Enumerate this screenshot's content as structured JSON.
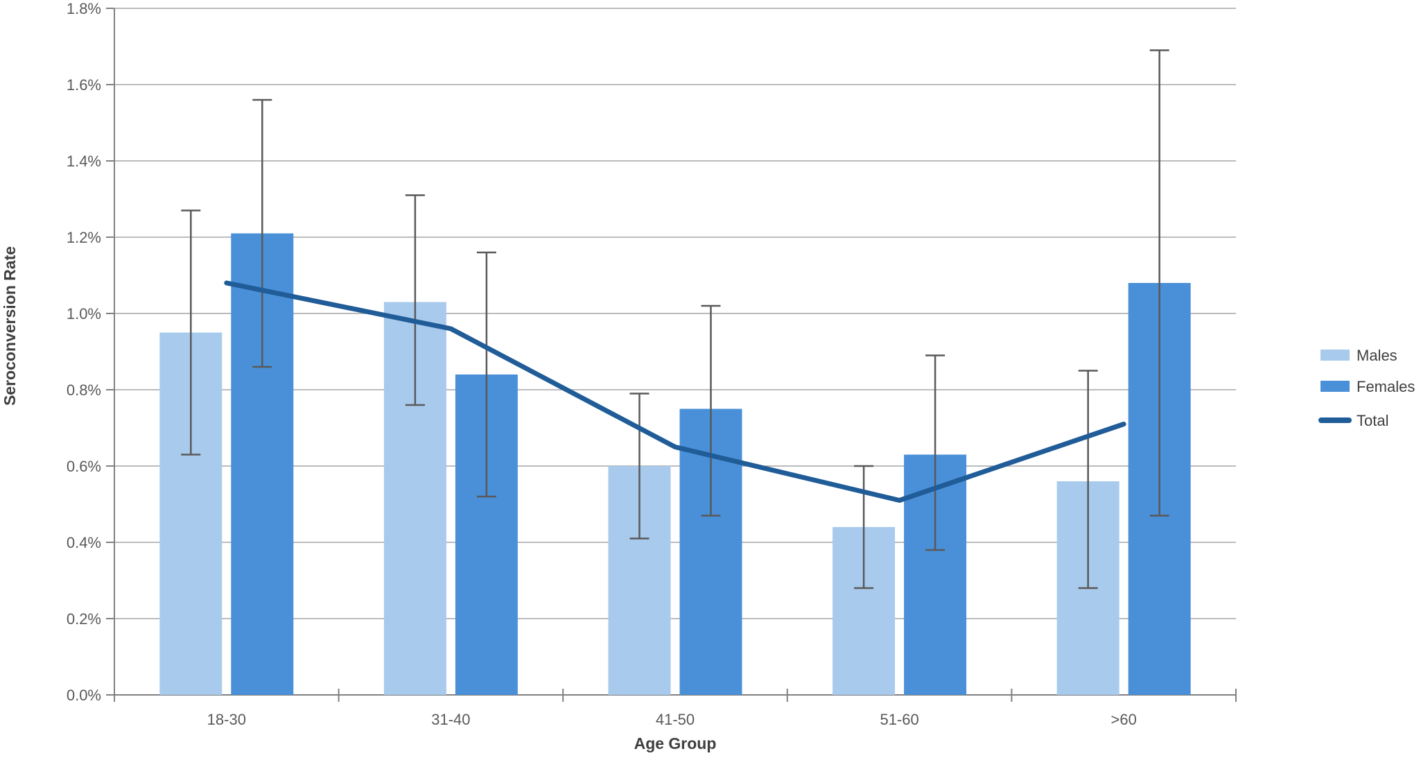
{
  "chart_data": {
    "type": "bar",
    "subtype": "grouped-bars-with-error-bars-and-line-overlay",
    "title": "",
    "xlabel": "Age Group",
    "ylabel": "Seroconversion Rate",
    "categories": [
      "18-30",
      "31-40",
      "41-50",
      "51-60",
      ">60"
    ],
    "value_unit": "percent",
    "ylim": [
      0.0,
      1.8
    ],
    "ytick_step": 0.2,
    "ytick_labels": [
      "0.0%",
      "0.2%",
      "0.4%",
      "0.6%",
      "0.8%",
      "1.0%",
      "1.2%",
      "1.4%",
      "1.6%",
      "1.8%"
    ],
    "grid": true,
    "legend_position": "right",
    "series": [
      {
        "name": "Males",
        "kind": "bar",
        "color": "#A8CAEC",
        "values": [
          0.95,
          1.03,
          0.6,
          0.44,
          0.56
        ],
        "error_low": [
          0.63,
          0.76,
          0.41,
          0.28,
          0.28
        ],
        "error_high": [
          1.27,
          1.31,
          0.79,
          0.6,
          0.85
        ]
      },
      {
        "name": "Females",
        "kind": "bar",
        "color": "#4A90D8",
        "values": [
          1.21,
          0.84,
          0.75,
          0.63,
          1.08
        ],
        "error_low": [
          0.86,
          0.52,
          0.47,
          0.38,
          0.47
        ],
        "error_high": [
          1.56,
          1.16,
          1.02,
          0.89,
          1.69
        ]
      },
      {
        "name": "Total",
        "kind": "line",
        "color": "#205C98",
        "values": [
          1.08,
          0.96,
          0.65,
          0.51,
          0.71
        ]
      }
    ],
    "style_colors": {
      "gridline": "#A6A6A6",
      "axis_line": "#808080",
      "tick_label": "#595959",
      "axis_title": "#3F3F3F",
      "error_bar": "#595959",
      "background": "#FFFFFF"
    }
  }
}
